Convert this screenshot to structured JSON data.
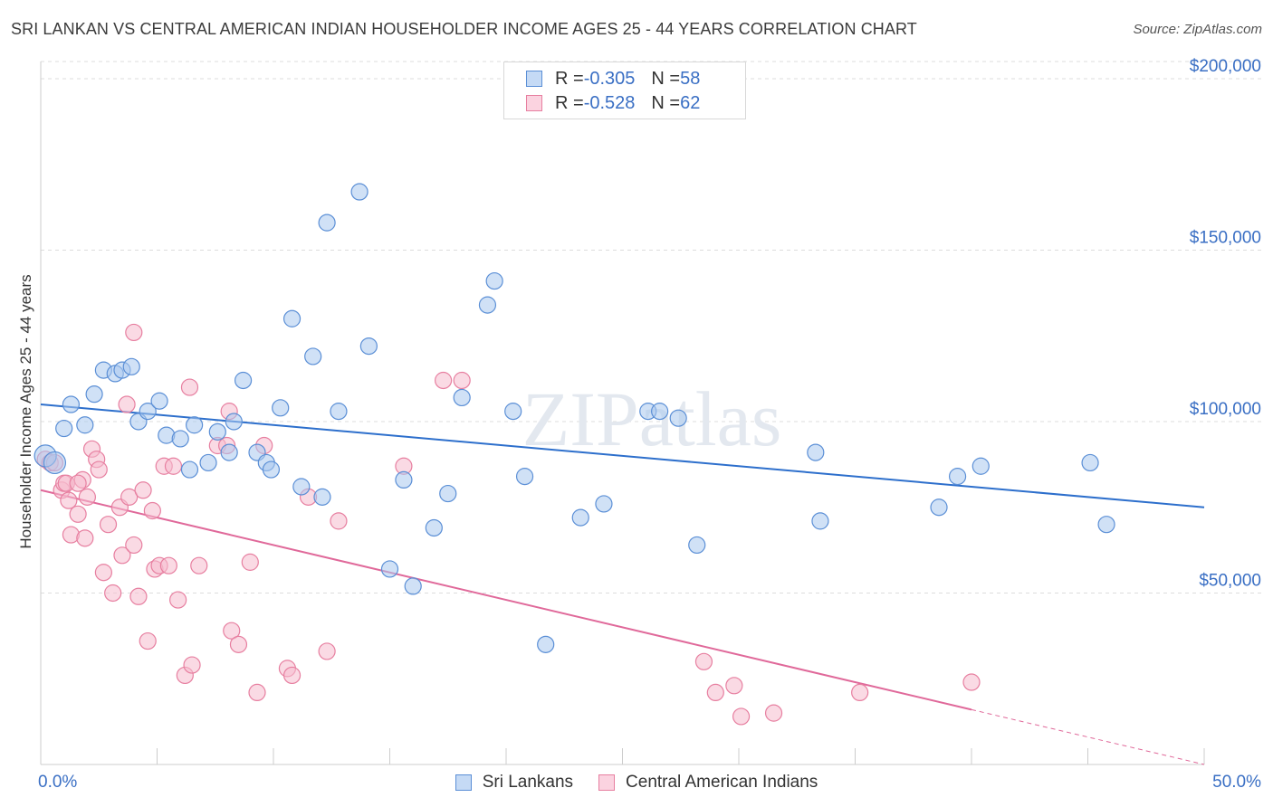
{
  "title": "SRI LANKAN VS CENTRAL AMERICAN INDIAN HOUSEHOLDER INCOME AGES 25 - 44 YEARS CORRELATION CHART",
  "source": "Source: ZipAtlas.com",
  "watermark": "ZIPatlas",
  "legend": {
    "rows": [
      {
        "r_label": "R = ",
        "r_value": "-0.305",
        "n_label": "N = ",
        "n_value": "58"
      },
      {
        "r_label": "R = ",
        "r_value": "-0.528",
        "n_label": "N = ",
        "n_value": "62"
      }
    ]
  },
  "bottom_legend": [
    "Sri Lankans",
    "Central American Indians"
  ],
  "colors": {
    "blue_fill": "#a9c8ee",
    "blue_stroke": "#5b8fd6",
    "blue_line": "#2d6fcc",
    "pink_fill": "#f6bccd",
    "pink_stroke": "#e77fa0",
    "pink_line": "#e0699a",
    "axis_label": "#3a6fc4",
    "grid": "#dddddd"
  },
  "chart_data": {
    "type": "scatter",
    "ylabel": "Householder Income Ages 25 - 44 years",
    "x_tick_labels": [
      "0.0%",
      "50.0%"
    ],
    "y_tick_labels": [
      "$50,000",
      "$100,000",
      "$150,000",
      "$200,000"
    ],
    "y_ticks": [
      50000,
      100000,
      150000,
      200000
    ],
    "xlim": [
      0,
      50
    ],
    "ylim": [
      0,
      205000
    ],
    "grid": true,
    "series": [
      {
        "name": "Sri Lankans",
        "trend": {
          "x": [
            0,
            50
          ],
          "y": [
            105000,
            75000
          ]
        },
        "points": [
          [
            0.2,
            90000
          ],
          [
            0.6,
            88000
          ],
          [
            1.0,
            98000
          ],
          [
            1.9,
            99000
          ],
          [
            1.3,
            105000
          ],
          [
            2.3,
            108000
          ],
          [
            2.7,
            115000
          ],
          [
            3.2,
            114000
          ],
          [
            3.5,
            115000
          ],
          [
            3.9,
            116000
          ],
          [
            4.2,
            100000
          ],
          [
            4.6,
            103000
          ],
          [
            5.1,
            106000
          ],
          [
            5.4,
            96000
          ],
          [
            6.0,
            95000
          ],
          [
            6.4,
            86000
          ],
          [
            6.6,
            99000
          ],
          [
            7.2,
            88000
          ],
          [
            7.6,
            97000
          ],
          [
            8.1,
            91000
          ],
          [
            8.3,
            100000
          ],
          [
            8.7,
            112000
          ],
          [
            9.3,
            91000
          ],
          [
            9.7,
            88000
          ],
          [
            9.9,
            86000
          ],
          [
            10.3,
            104000
          ],
          [
            10.8,
            130000
          ],
          [
            11.2,
            81000
          ],
          [
            11.7,
            119000
          ],
          [
            12.1,
            78000
          ],
          [
            12.3,
            158000
          ],
          [
            12.8,
            103000
          ],
          [
            13.7,
            167000
          ],
          [
            14.1,
            122000
          ],
          [
            15.0,
            57000
          ],
          [
            15.6,
            83000
          ],
          [
            16.0,
            52000
          ],
          [
            16.9,
            69000
          ],
          [
            17.5,
            79000
          ],
          [
            18.1,
            107000
          ],
          [
            19.2,
            134000
          ],
          [
            19.5,
            141000
          ],
          [
            20.3,
            103000
          ],
          [
            20.8,
            84000
          ],
          [
            21.7,
            35000
          ],
          [
            23.2,
            72000
          ],
          [
            24.2,
            76000
          ],
          [
            26.1,
            103000
          ],
          [
            26.6,
            103000
          ],
          [
            27.4,
            101000
          ],
          [
            28.2,
            64000
          ],
          [
            33.3,
            91000
          ],
          [
            33.5,
            71000
          ],
          [
            38.6,
            75000
          ],
          [
            39.4,
            84000
          ],
          [
            40.4,
            87000
          ],
          [
            45.1,
            88000
          ],
          [
            45.8,
            70000
          ]
        ]
      },
      {
        "name": "Central American Indians",
        "trend": {
          "x": [
            0,
            40
          ],
          "y": [
            80000,
            16000
          ]
        },
        "trend_extension": {
          "x": [
            40,
            50
          ],
          "y": [
            16000,
            0
          ]
        },
        "points": [
          [
            0.2,
            89000
          ],
          [
            0.4,
            88000
          ],
          [
            0.6,
            88000
          ],
          [
            0.9,
            80000
          ],
          [
            1.0,
            82000
          ],
          [
            1.1,
            82000
          ],
          [
            1.2,
            77000
          ],
          [
            1.3,
            67000
          ],
          [
            1.6,
            73000
          ],
          [
            1.8,
            83000
          ],
          [
            1.9,
            66000
          ],
          [
            2.0,
            78000
          ],
          [
            2.2,
            92000
          ],
          [
            2.4,
            89000
          ],
          [
            2.5,
            86000
          ],
          [
            2.7,
            56000
          ],
          [
            2.9,
            70000
          ],
          [
            3.1,
            50000
          ],
          [
            3.4,
            75000
          ],
          [
            3.5,
            61000
          ],
          [
            3.7,
            105000
          ],
          [
            3.8,
            78000
          ],
          [
            4.0,
            64000
          ],
          [
            4.2,
            49000
          ],
          [
            4.4,
            80000
          ],
          [
            4.6,
            36000
          ],
          [
            4.8,
            74000
          ],
          [
            4.9,
            57000
          ],
          [
            5.1,
            58000
          ],
          [
            5.3,
            87000
          ],
          [
            5.5,
            58000
          ],
          [
            5.7,
            87000
          ],
          [
            5.9,
            48000
          ],
          [
            6.2,
            26000
          ],
          [
            6.4,
            110000
          ],
          [
            6.5,
            29000
          ],
          [
            6.8,
            58000
          ],
          [
            7.6,
            93000
          ],
          [
            8.0,
            93000
          ],
          [
            8.1,
            103000
          ],
          [
            8.2,
            39000
          ],
          [
            8.5,
            35000
          ],
          [
            9.0,
            59000
          ],
          [
            9.3,
            21000
          ],
          [
            9.6,
            93000
          ],
          [
            10.6,
            28000
          ],
          [
            10.8,
            26000
          ],
          [
            11.5,
            78000
          ],
          [
            12.3,
            33000
          ],
          [
            12.8,
            71000
          ],
          [
            15.6,
            87000
          ],
          [
            17.3,
            112000
          ],
          [
            18.1,
            112000
          ],
          [
            4.0,
            126000
          ],
          [
            28.5,
            30000
          ],
          [
            29.0,
            21000
          ],
          [
            29.8,
            23000
          ],
          [
            30.1,
            14000
          ],
          [
            31.5,
            15000
          ],
          [
            35.2,
            21000
          ],
          [
            40.0,
            24000
          ],
          [
            1.6,
            82000
          ]
        ]
      }
    ]
  }
}
